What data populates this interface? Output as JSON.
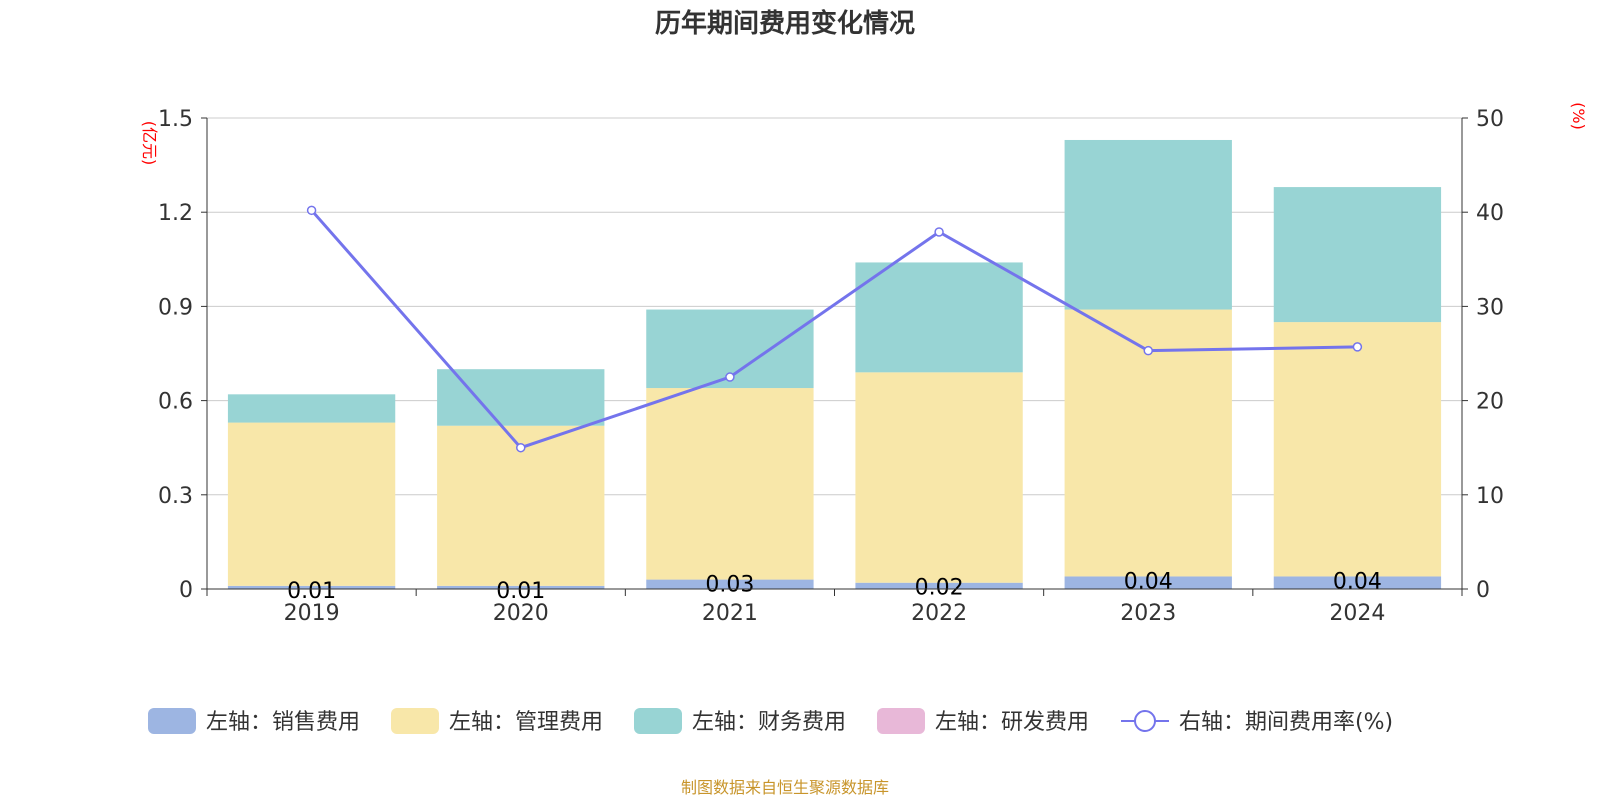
{
  "chart_data": {
    "type": "bar",
    "title": "历年期间费用变化情况",
    "categories": [
      "2019",
      "2020",
      "2021",
      "2022",
      "2023",
      "2024"
    ],
    "y_left": {
      "unit": "(亿元)",
      "ticks": [
        "0",
        "0.3",
        "0.6",
        "0.9",
        "1.2",
        "1.5"
      ],
      "range": [
        0,
        1.5
      ]
    },
    "y_right": {
      "unit": "(%)",
      "ticks": [
        "0",
        "10",
        "20",
        "30",
        "40",
        "50"
      ],
      "range": [
        0,
        50
      ]
    },
    "stacked": true,
    "series": [
      {
        "name": "左轴：销售费用",
        "color": "#9db5e2",
        "values": [
          0.01,
          0.01,
          0.03,
          0.02,
          0.04,
          0.04
        ],
        "labels": [
          "0.01",
          "0.01",
          "0.03",
          "0.02",
          "0.04",
          "0.04"
        ]
      },
      {
        "name": "左轴：管理费用",
        "color": "#f8e7a9",
        "values": [
          0.52,
          0.51,
          0.61,
          0.67,
          0.85,
          0.81
        ]
      },
      {
        "name": "左轴：财务费用",
        "color": "#98d4d4",
        "values": [
          0.09,
          0.18,
          0.25,
          0.35,
          0.54,
          0.43
        ]
      },
      {
        "name": "左轴：研发费用",
        "color": "#e8b8d8",
        "values": [
          0,
          0,
          0,
          0,
          0,
          0
        ]
      }
    ],
    "line": {
      "name": "右轴：期间费用率(%)",
      "color": "#7474ec",
      "axis": "right",
      "values": [
        40.2,
        15.0,
        22.5,
        37.9,
        25.3,
        25.7
      ]
    },
    "grid": true,
    "legend_position": "bottom"
  },
  "source": "制图数据来自恒生聚源数据库"
}
